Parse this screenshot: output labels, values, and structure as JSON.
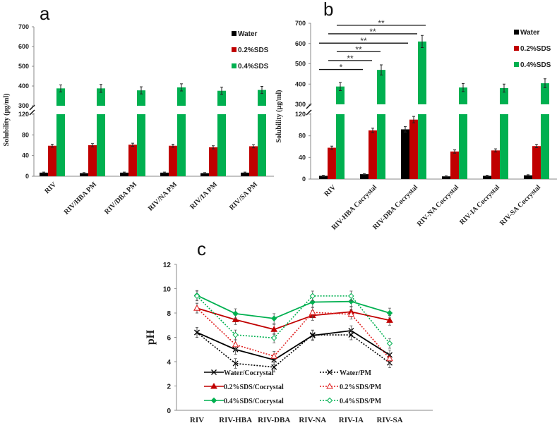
{
  "colors": {
    "water": "#000000",
    "sds02": "#C00000",
    "sds04": "#00B050"
  },
  "chart_data": [
    {
      "panel": "a",
      "type": "bar",
      "ylabel": "Solubility (µg/ml)",
      "yticks_lower": [
        0,
        40,
        80,
        120
      ],
      "yticks_upper": [
        300,
        400,
        500,
        600,
        700
      ],
      "axis_break": [
        120,
        300
      ],
      "ylim": [
        0,
        700
      ],
      "categories": [
        "RIV",
        "RIV/HBA PM",
        "RIV/DBA PM",
        "RIV/NA PM",
        "RIV/IA PM",
        "RIV/SA PM"
      ],
      "series": [
        {
          "name": "Water",
          "color": "#000000",
          "values": [
            7,
            6,
            7,
            7,
            6,
            7
          ],
          "errors": [
            1,
            1,
            1,
            1,
            1,
            1
          ]
        },
        {
          "name": "0.2%SDS",
          "color": "#C00000",
          "values": [
            59,
            60,
            61,
            59,
            56,
            58
          ],
          "errors": [
            3,
            3,
            3,
            3,
            3,
            3
          ]
        },
        {
          "name": "0.4%SDS",
          "color": "#00B050",
          "values": [
            388,
            388,
            378,
            393,
            376,
            380
          ],
          "errors": [
            18,
            20,
            18,
            18,
            18,
            18
          ]
        }
      ],
      "legend": "top-right"
    },
    {
      "panel": "b",
      "type": "bar",
      "ylabel": "Solubility (µg/ml)",
      "yticks_lower": [
        0,
        40,
        80,
        120
      ],
      "yticks_upper": [
        300,
        400,
        500,
        600,
        700
      ],
      "axis_break": [
        120,
        300
      ],
      "ylim": [
        0,
        700
      ],
      "categories": [
        "RIV",
        "RIV-HBA Cocrystal",
        "RIV-DBA Cocrystal",
        "RIV-NA Cocrystal",
        "RIV-IA Cocrystal",
        "RIV-SA Cocrystal"
      ],
      "series": [
        {
          "name": "Water",
          "color": "#000000",
          "values": [
            6,
            9,
            92,
            5,
            6,
            7
          ],
          "errors": [
            1,
            1,
            5,
            1,
            1,
            1
          ]
        },
        {
          "name": "0.2%SDS",
          "color": "#C00000",
          "values": [
            58,
            90,
            110,
            51,
            53,
            61
          ],
          "errors": [
            3,
            4,
            6,
            3,
            3,
            3
          ]
        },
        {
          "name": "0.4%SDS",
          "color": "#00B050",
          "values": [
            388,
            470,
            610,
            383,
            380,
            404
          ],
          "errors": [
            20,
            25,
            30,
            20,
            20,
            22
          ]
        }
      ],
      "significance": [
        {
          "from": 0,
          "to": 1,
          "label": "*",
          "level": 472
        },
        {
          "from": 0,
          "to": 1,
          "label": "**",
          "level": 516
        },
        {
          "from": 0,
          "to": 1,
          "label": "**",
          "level": 560
        },
        {
          "from": 0,
          "to": 2,
          "label": "**",
          "level": 602
        },
        {
          "from": 0,
          "to": 2,
          "label": "**",
          "level": 648
        },
        {
          "from": 0,
          "to": 2,
          "label": "**",
          "level": 690
        }
      ],
      "legend": "top-right"
    },
    {
      "panel": "c",
      "type": "line",
      "ylabel": "pH",
      "ylim": [
        0,
        12
      ],
      "yticks": [
        0,
        2,
        4,
        6,
        8,
        10,
        12
      ],
      "categories": [
        "RIV",
        "RIV-HBA",
        "RIV-DBA",
        "RIV-NA",
        "RIV-IA",
        "RIV-SA"
      ],
      "series": [
        {
          "name": "Water/Cocrystal",
          "color": "#000000",
          "dash": false,
          "marker": "x",
          "values": [
            6.4,
            5.0,
            4.15,
            6.15,
            6.55,
            4.55
          ]
        },
        {
          "name": "Water/PM",
          "color": "#000000",
          "dash": true,
          "marker": "x",
          "values": [
            6.4,
            3.85,
            3.55,
            6.2,
            6.2,
            3.9
          ]
        },
        {
          "name": "0.2%SDS/Cocrystal",
          "color": "#C00000",
          "dash": false,
          "marker": "triangle",
          "values": [
            8.4,
            7.45,
            6.65,
            7.8,
            8.1,
            7.4
          ]
        },
        {
          "name": "0.2%SDS/PM",
          "color": "#E02020",
          "dash": true,
          "marker": "triangle-open",
          "values": [
            8.4,
            5.4,
            4.45,
            8.05,
            7.9,
            4.25
          ]
        },
        {
          "name": "0.4%SDS/Cocrystal",
          "color": "#00B050",
          "dash": false,
          "marker": "diamond",
          "values": [
            9.45,
            7.95,
            7.55,
            8.9,
            8.95,
            8.0
          ]
        },
        {
          "name": "0.4%SDS/PM",
          "color": "#00B050",
          "dash": true,
          "marker": "diamond-open",
          "values": [
            9.4,
            6.2,
            5.95,
            9.4,
            9.4,
            5.5
          ]
        }
      ],
      "error": 0.4,
      "legend": "bottom-inside"
    }
  ]
}
